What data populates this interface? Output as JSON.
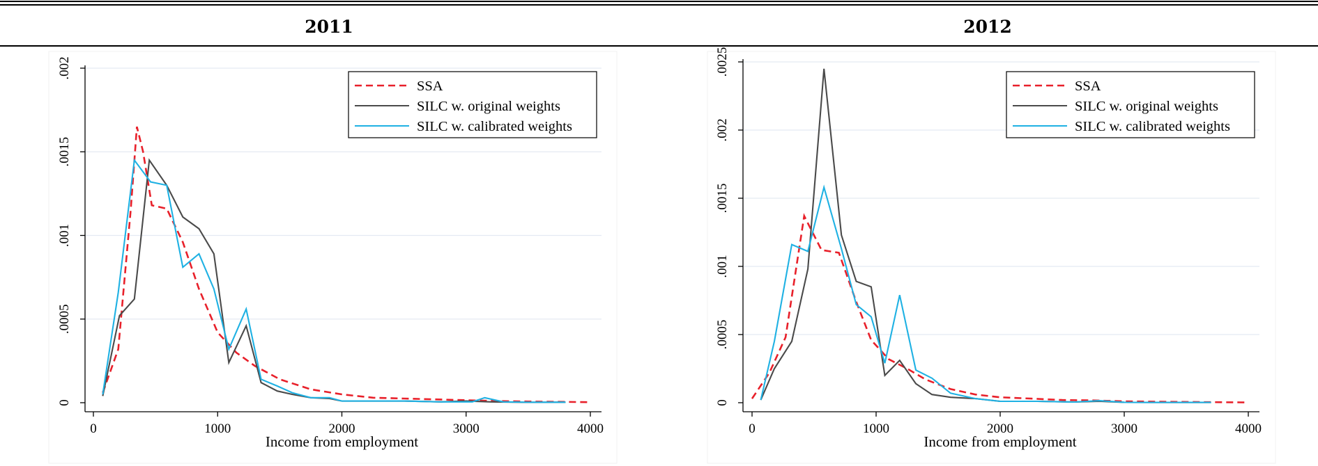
{
  "colors": {
    "ssa": "#e8202a",
    "silc_original": "#4a4a4a",
    "silc_calibrated": "#1fb1e3",
    "grid": "#e4eaf2"
  },
  "chart_data": [
    {
      "type": "line",
      "title": "2011",
      "xlabel": "Income from employment",
      "ylabel": "",
      "xlim": [
        0,
        4000
      ],
      "ylim": [
        0,
        0.002
      ],
      "xticks": [
        0,
        1000,
        2000,
        3000,
        4000
      ],
      "xtick_labels": [
        "0",
        "1000",
        "2000",
        "3000",
        "4000"
      ],
      "yticks": [
        0,
        0.0005,
        0.001,
        0.0015,
        0.002
      ],
      "ytick_labels": [
        "0",
        ".0005",
        ".001",
        ".0015",
        ".002"
      ],
      "grid": true,
      "legend_position": "top-right",
      "series": [
        {
          "name": "SSA",
          "color_key": "ssa",
          "dash": true,
          "points": [
            [
              75,
              6e-05
            ],
            [
              200,
              0.00032
            ],
            [
              300,
              0.00115
            ],
            [
              350,
              0.00165
            ],
            [
              400,
              0.0015
            ],
            [
              470,
              0.00118
            ],
            [
              590,
              0.00116
            ],
            [
              720,
              0.00096
            ],
            [
              850,
              0.00068
            ],
            [
              1000,
              0.00042
            ],
            [
              1150,
              0.0003
            ],
            [
              1300,
              0.00022
            ],
            [
              1500,
              0.00014
            ],
            [
              1750,
              8e-05
            ],
            [
              2000,
              5e-05
            ],
            [
              2250,
              3e-05
            ],
            [
              2500,
              2.5e-05
            ],
            [
              2750,
              2e-05
            ],
            [
              3000,
              1.5e-05
            ],
            [
              3250,
              1e-05
            ],
            [
              3500,
              7e-06
            ],
            [
              3800,
              5e-06
            ],
            [
              4000,
              3e-06
            ]
          ]
        },
        {
          "name": "SILC w. original weights",
          "color_key": "silc_original",
          "dash": false,
          "points": [
            [
              75,
              4e-05
            ],
            [
              210,
              0.00052
            ],
            [
              330,
              0.00062
            ],
            [
              450,
              0.00145
            ],
            [
              590,
              0.0013
            ],
            [
              720,
              0.00111
            ],
            [
              850,
              0.00104
            ],
            [
              970,
              0.00089
            ],
            [
              1090,
              0.00024
            ],
            [
              1230,
              0.00046
            ],
            [
              1350,
              0.00012
            ],
            [
              1480,
              7e-05
            ],
            [
              1600,
              5e-05
            ],
            [
              1750,
              3e-05
            ],
            [
              1900,
              2.5e-05
            ],
            [
              2000,
              1e-05
            ],
            [
              2200,
              1e-05
            ],
            [
              2500,
              1e-05
            ],
            [
              2800,
              5e-06
            ],
            [
              3000,
              1e-05
            ],
            [
              3200,
              5e-06
            ],
            [
              3500,
              2e-06
            ],
            [
              3800,
              3e-06
            ]
          ]
        },
        {
          "name": "SILC w. calibrated weights",
          "color_key": "silc_calibrated",
          "dash": false,
          "points": [
            [
              75,
              5e-05
            ],
            [
              200,
              0.00066
            ],
            [
              330,
              0.00145
            ],
            [
              460,
              0.00132
            ],
            [
              590,
              0.0013
            ],
            [
              720,
              0.00081
            ],
            [
              850,
              0.00089
            ],
            [
              970,
              0.00068
            ],
            [
              1090,
              0.00032
            ],
            [
              1230,
              0.00056
            ],
            [
              1350,
              0.00014
            ],
            [
              1480,
              0.0001
            ],
            [
              1600,
              6e-05
            ],
            [
              1750,
              3e-05
            ],
            [
              1900,
              3e-05
            ],
            [
              2000,
              1e-05
            ],
            [
              2200,
              1e-05
            ],
            [
              2500,
              1e-05
            ],
            [
              2800,
              5e-06
            ],
            [
              3050,
              5e-06
            ],
            [
              3150,
              3e-05
            ],
            [
              3300,
              5e-06
            ],
            [
              3500,
              3e-06
            ],
            [
              3800,
              3e-06
            ]
          ]
        }
      ]
    },
    {
      "type": "line",
      "title": "2012",
      "xlabel": "Income from employment",
      "ylabel": "",
      "xlim": [
        0,
        4000
      ],
      "ylim": [
        0,
        0.0025
      ],
      "xticks": [
        0,
        1000,
        2000,
        3000,
        4000
      ],
      "xtick_labels": [
        "0",
        "1000",
        "2000",
        "3000",
        "4000"
      ],
      "yticks": [
        0,
        0.0005,
        0.001,
        0.0015,
        0.002,
        0.0025
      ],
      "ytick_labels": [
        "0",
        ".0005",
        ".001",
        ".0015",
        ".002",
        ".0025"
      ],
      "grid": true,
      "legend_position": "top-right",
      "series": [
        {
          "name": "SSA",
          "color_key": "ssa",
          "dash": true,
          "points": [
            [
              0,
              3e-05
            ],
            [
              140,
              0.00022
            ],
            [
              270,
              0.00048
            ],
            [
              420,
              0.00137
            ],
            [
              560,
              0.00112
            ],
            [
              700,
              0.0011
            ],
            [
              840,
              0.00074
            ],
            [
              960,
              0.00046
            ],
            [
              1100,
              0.00032
            ],
            [
              1250,
              0.00025
            ],
            [
              1400,
              0.00017
            ],
            [
              1600,
              0.0001
            ],
            [
              1800,
              6e-05
            ],
            [
              2000,
              4e-05
            ],
            [
              2250,
              3e-05
            ],
            [
              2500,
              2e-05
            ],
            [
              2750,
              1.7e-05
            ],
            [
              3000,
              1e-05
            ],
            [
              3300,
              7e-06
            ],
            [
              3700,
              4e-06
            ],
            [
              4000,
              2e-06
            ]
          ]
        },
        {
          "name": "SILC w. original weights",
          "color_key": "silc_original",
          "dash": false,
          "points": [
            [
              70,
              2e-05
            ],
            [
              180,
              0.00025
            ],
            [
              320,
              0.00045
            ],
            [
              450,
              0.00098
            ],
            [
              580,
              0.00245
            ],
            [
              720,
              0.00123
            ],
            [
              840,
              0.00089
            ],
            [
              960,
              0.00085
            ],
            [
              1070,
              0.0002
            ],
            [
              1190,
              0.00031
            ],
            [
              1320,
              0.00014
            ],
            [
              1450,
              6e-05
            ],
            [
              1600,
              4e-05
            ],
            [
              1800,
              3e-05
            ],
            [
              2000,
              1e-05
            ],
            [
              2300,
              1e-05
            ],
            [
              2600,
              5e-06
            ],
            [
              2800,
              1e-05
            ],
            [
              3000,
              3e-06
            ],
            [
              3300,
              2e-06
            ],
            [
              3700,
              2e-06
            ]
          ]
        },
        {
          "name": "SILC w. calibrated weights",
          "color_key": "silc_calibrated",
          "dash": false,
          "points": [
            [
              70,
              2e-05
            ],
            [
              180,
              0.00045
            ],
            [
              320,
              0.00116
            ],
            [
              450,
              0.00111
            ],
            [
              580,
              0.00158
            ],
            [
              720,
              0.00113
            ],
            [
              840,
              0.00072
            ],
            [
              960,
              0.00063
            ],
            [
              1070,
              0.00029
            ],
            [
              1190,
              0.00079
            ],
            [
              1320,
              0.00024
            ],
            [
              1450,
              0.00018
            ],
            [
              1600,
              7e-05
            ],
            [
              1800,
              3e-05
            ],
            [
              2000,
              1e-05
            ],
            [
              2300,
              1e-05
            ],
            [
              2600,
              5e-06
            ],
            [
              2800,
              1.5e-05
            ],
            [
              3000,
              3e-06
            ],
            [
              3300,
              2e-06
            ],
            [
              3700,
              2e-06
            ]
          ]
        }
      ]
    }
  ]
}
